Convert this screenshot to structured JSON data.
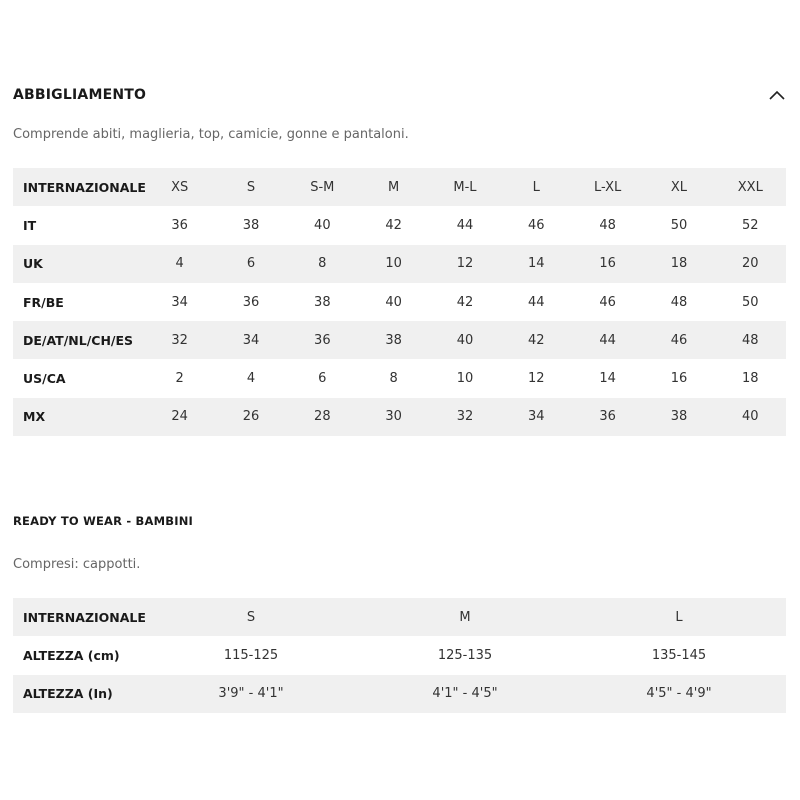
{
  "section1": {
    "title": "ABBIGLIAMENTO",
    "subtitle": "Comprende abiti, maglieria, top, camicie, gonne e pantaloni.",
    "collapse_icon": "chevron-up-icon",
    "table": {
      "header": [
        "INTERNAZIONALE",
        "XS",
        "S",
        "S-M",
        "M",
        "M-L",
        "L",
        "L-XL",
        "XL",
        "XXL"
      ],
      "rows": [
        [
          "IT",
          "36",
          "38",
          "40",
          "42",
          "44",
          "46",
          "48",
          "50",
          "52"
        ],
        [
          "UK",
          "4",
          "6",
          "8",
          "10",
          "12",
          "14",
          "16",
          "18",
          "20"
        ],
        [
          "FR/BE",
          "34",
          "36",
          "38",
          "40",
          "42",
          "44",
          "46",
          "48",
          "50"
        ],
        [
          "DE/AT/NL/CH/ES",
          "32",
          "34",
          "36",
          "38",
          "40",
          "42",
          "44",
          "46",
          "48"
        ],
        [
          "US/CA",
          "2",
          "4",
          "6",
          "8",
          "10",
          "12",
          "14",
          "16",
          "18"
        ],
        [
          "MX",
          "24",
          "26",
          "28",
          "30",
          "32",
          "34",
          "36",
          "38",
          "40"
        ]
      ]
    }
  },
  "section2": {
    "title": "READY TO WEAR - BAMBINI",
    "subtitle": "Compresi: cappotti.",
    "table": {
      "header": [
        "INTERNAZIONALE",
        "S",
        "M",
        "L"
      ],
      "rows": [
        [
          "ALTEZZA (cm)",
          "115-125",
          "125-135",
          "135-145"
        ],
        [
          "ALTEZZA (In)",
          "3'9\" - 4'1\"",
          "4'1\" - 4'5\"",
          "4'5\" - 4'9\""
        ]
      ]
    }
  },
  "colors": {
    "row_stripe": "#f0f0f0",
    "text": "#1a1a1a",
    "subtitle": "#666666"
  }
}
